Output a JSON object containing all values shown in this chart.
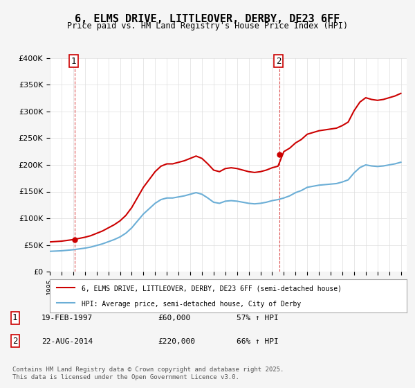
{
  "title": "6, ELMS DRIVE, LITTLEOVER, DERBY, DE23 6FF",
  "subtitle": "Price paid vs. HM Land Registry's House Price Index (HPI)",
  "legend_line1": "6, ELMS DRIVE, LITTLEOVER, DERBY, DE23 6FF (semi-detached house)",
  "legend_line2": "HPI: Average price, semi-detached house, City of Derby",
  "purchase1_label": "1",
  "purchase1_date": "19-FEB-1997",
  "purchase1_price": 60000,
  "purchase1_hpi": "57% ↑ HPI",
  "purchase2_label": "2",
  "purchase2_date": "22-AUG-2014",
  "purchase2_price": 220000,
  "purchase2_hpi": "66% ↑ HPI",
  "footer": "Contains HM Land Registry data © Crown copyright and database right 2025.\nThis data is licensed under the Open Government Licence v3.0.",
  "hpi_color": "#6baed6",
  "price_color": "#cc0000",
  "purchase_vline_color": "#cc0000",
  "ylim": [
    0,
    400000
  ],
  "background_color": "#f5f5f5",
  "plot_bg_color": "#ffffff"
}
